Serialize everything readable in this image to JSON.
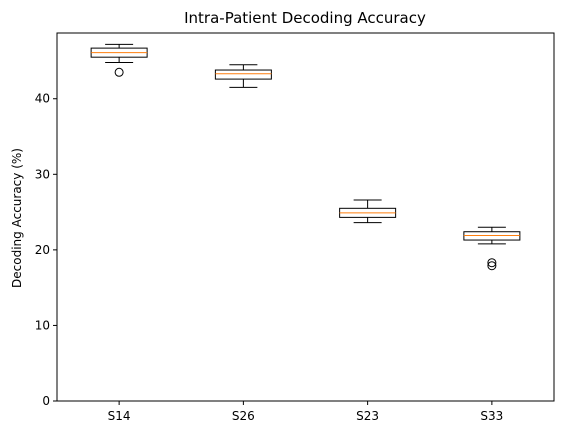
{
  "chart_data": {
    "type": "boxplot",
    "title": "Intra-Patient Decoding Accuracy",
    "xlabel": "",
    "ylabel": "Decoding Accuracy (%)",
    "ylim": [
      0,
      48.7
    ],
    "yticks": [
      0,
      10,
      20,
      30,
      40
    ],
    "grid": false,
    "categories": [
      "S14",
      "S26",
      "S23",
      "S33"
    ],
    "boxes": [
      {
        "whisker_low": 44.8,
        "q1": 45.5,
        "median": 46.1,
        "q3": 46.7,
        "whisker_high": 47.2,
        "outliers": [
          43.5
        ]
      },
      {
        "whisker_low": 41.5,
        "q1": 42.6,
        "median": 43.3,
        "q3": 43.8,
        "whisker_high": 44.5,
        "outliers": []
      },
      {
        "whisker_low": 23.6,
        "q1": 24.3,
        "median": 24.9,
        "q3": 25.5,
        "whisker_high": 26.6,
        "outliers": []
      },
      {
        "whisker_low": 20.8,
        "q1": 21.3,
        "median": 21.9,
        "q3": 22.4,
        "whisker_high": 23.0,
        "outliers": [
          18.3,
          17.9
        ]
      }
    ],
    "colors": {
      "box": "#000000",
      "median": "#ff7f0e",
      "outlier": "#000000"
    }
  }
}
